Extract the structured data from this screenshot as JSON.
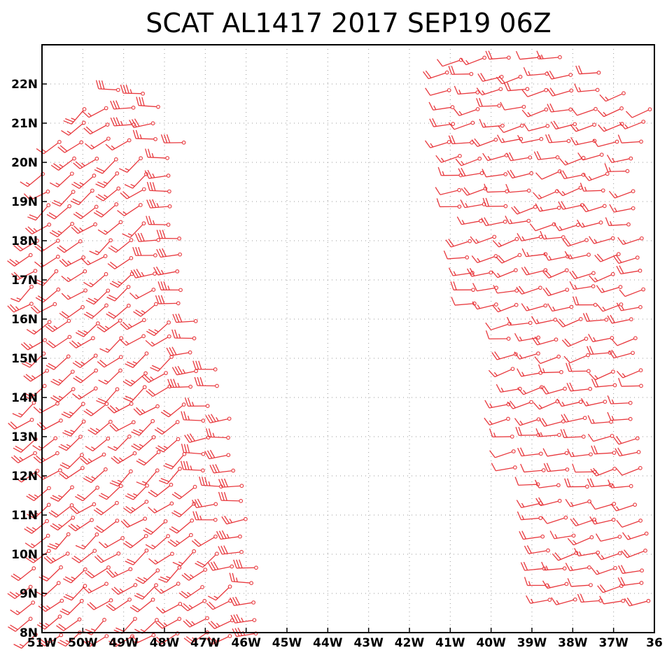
{
  "title": "SCAT AL1417 2017 SEP19 06Z",
  "chart_data": {
    "type": "scatter",
    "title": "SCAT AL1417 2017 SEP19 06Z",
    "xlabel": "",
    "ylabel": "",
    "xlim": [
      -51,
      -36
    ],
    "ylim": [
      8,
      23
    ],
    "grid": true,
    "x_tick_labels": [
      "51W",
      "50W",
      "49W",
      "48W",
      "47W",
      "46W",
      "45W",
      "44W",
      "43W",
      "42W",
      "41W",
      "40W",
      "39W",
      "38W",
      "37W",
      "36"
    ],
    "y_tick_labels": [
      "8N",
      "9N",
      "10N",
      "11N",
      "12N",
      "13N",
      "14N",
      "15N",
      "16N",
      "17N",
      "18N",
      "19N",
      "20N",
      "21N",
      "22N"
    ],
    "x_tick_values": [
      -51,
      -50,
      -49,
      -48,
      -47,
      -46,
      -45,
      -44,
      -43,
      -42,
      -41,
      -40,
      -39,
      -38,
      -37,
      -36
    ],
    "y_tick_values": [
      8,
      9,
      10,
      11,
      12,
      13,
      14,
      15,
      16,
      17,
      18,
      19,
      20,
      21,
      22
    ],
    "marker": "wind_barb",
    "barb_color": "#e8383d",
    "swaths": [
      {
        "name": "",
        "lon_range": [
          -51,
          -45.3
        ],
        "lat_range": [
          7.9,
          22.0
        ],
        "typical_direction_from_deg": 225,
        "typical_speed_kt": [
          15,
          30
        ],
        "note_values": "southwesterly winds, stronger near eastern edge"
      },
      {
        "name": "",
        "lon_range": [
          -41.2,
          -36
        ],
        "lat_range": [
          8.7,
          22.8
        ],
        "typical_direction_from_deg": 250,
        "typical_speed_kt": [
          10,
          25
        ],
        "note_values": "west-southwesterly winds"
      }
    ]
  }
}
